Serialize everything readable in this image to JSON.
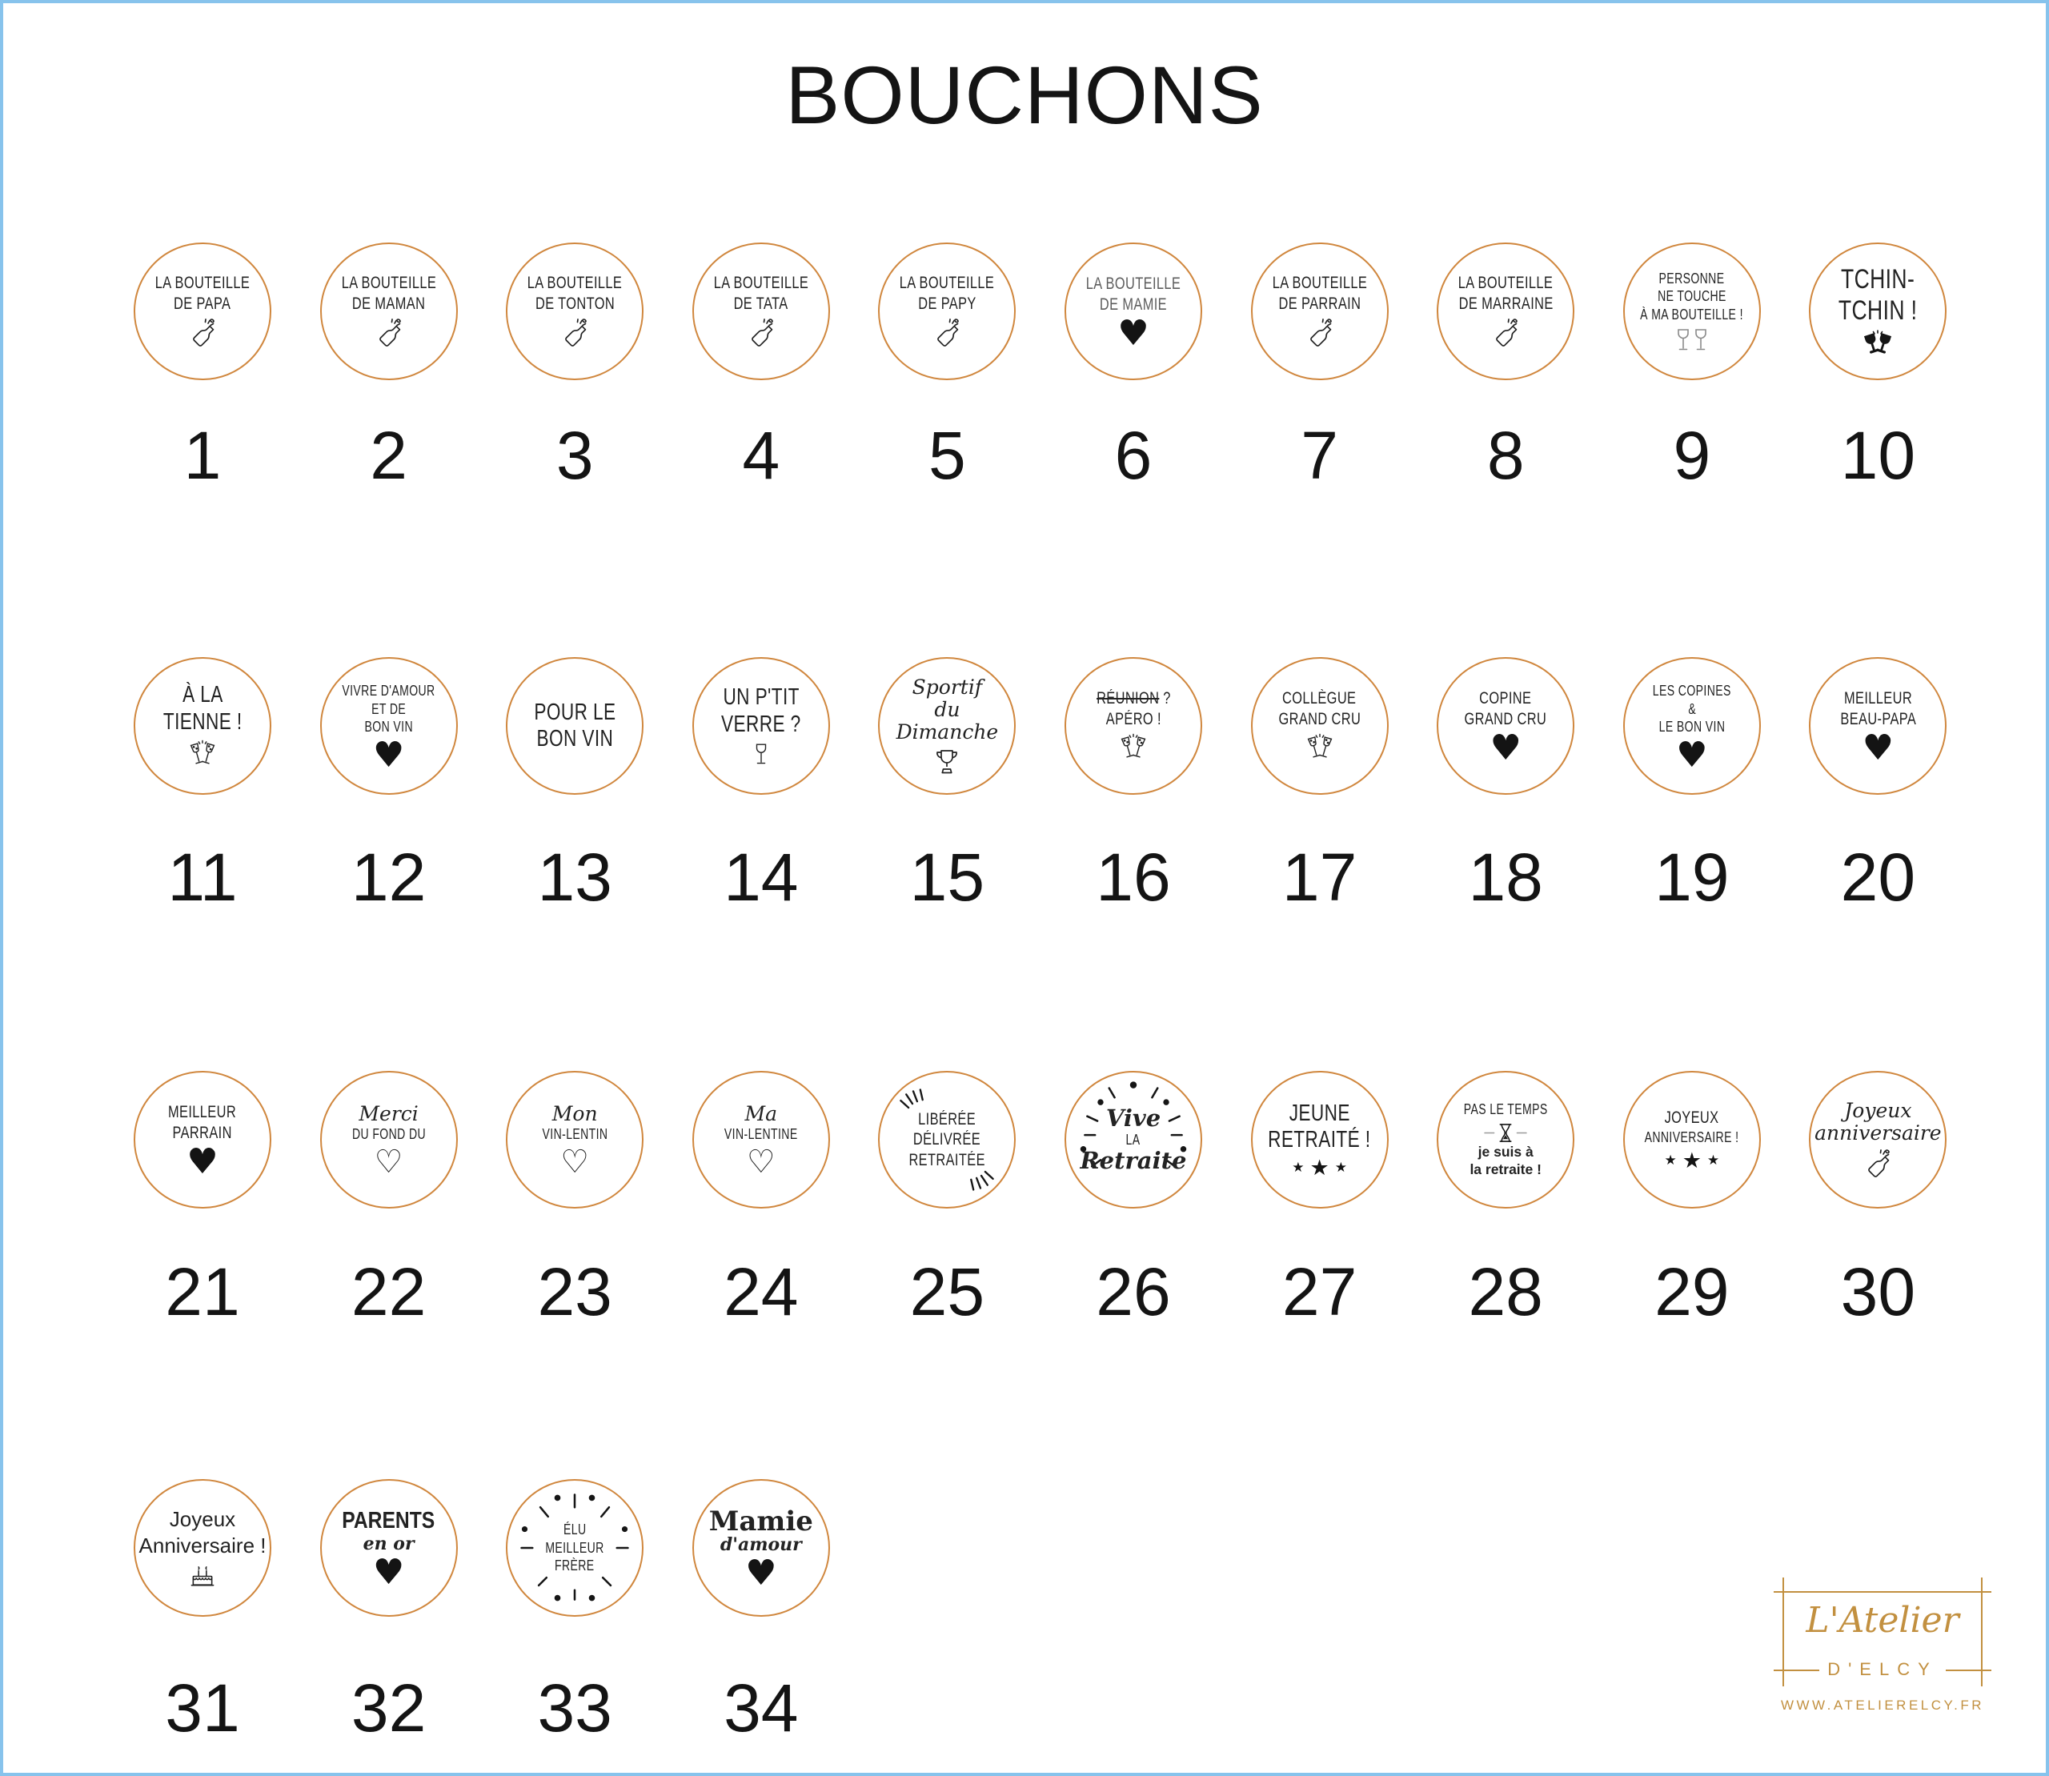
{
  "page": {
    "title": "BOUCHONS",
    "colors": {
      "circle_border": "#d0873e",
      "logo_gold": "#c29040",
      "page_border": "#87c3ec"
    }
  },
  "badges": [
    {
      "n": "1",
      "row": 1,
      "col": 1,
      "c": [
        {
          "t": "LA BOUTEILLE",
          "s": "caps"
        },
        {
          "t": "DE PAPA",
          "s": "caps"
        },
        {
          "i": "champagne-bottle"
        }
      ]
    },
    {
      "n": "2",
      "row": 1,
      "col": 2,
      "c": [
        {
          "t": "LA BOUTEILLE",
          "s": "caps"
        },
        {
          "t": "DE MAMAN",
          "s": "caps"
        },
        {
          "i": "champagne-bottle"
        }
      ]
    },
    {
      "n": "3",
      "row": 1,
      "col": 3,
      "c": [
        {
          "t": "LA BOUTEILLE",
          "s": "caps"
        },
        {
          "t": "DE TONTON",
          "s": "caps"
        },
        {
          "i": "champagne-bottle"
        }
      ]
    },
    {
      "n": "4",
      "row": 1,
      "col": 4,
      "c": [
        {
          "t": "LA BOUTEILLE",
          "s": "caps"
        },
        {
          "t": "DE TATA",
          "s": "caps"
        },
        {
          "i": "champagne-bottle"
        }
      ]
    },
    {
      "n": "5",
      "row": 1,
      "col": 5,
      "c": [
        {
          "t": "LA BOUTEILLE",
          "s": "caps"
        },
        {
          "t": "DE PAPY",
          "s": "caps"
        },
        {
          "i": "champagne-bottle"
        }
      ]
    },
    {
      "n": "6",
      "row": 1,
      "col": 6,
      "muted": true,
      "c": [
        {
          "t": "LA BOUTEILLE",
          "s": "caps"
        },
        {
          "t": "DE MAMIE",
          "s": "caps"
        },
        {
          "i": "heart-filled"
        }
      ]
    },
    {
      "n": "7",
      "row": 1,
      "col": 7,
      "c": [
        {
          "t": "LA BOUTEILLE",
          "s": "caps"
        },
        {
          "t": "DE PARRAIN",
          "s": "caps"
        },
        {
          "i": "champagne-bottle"
        }
      ]
    },
    {
      "n": "8",
      "row": 1,
      "col": 8,
      "c": [
        {
          "t": "LA BOUTEILLE",
          "s": "caps"
        },
        {
          "t": "DE MARRAINE",
          "s": "caps"
        },
        {
          "i": "champagne-bottle"
        }
      ]
    },
    {
      "n": "9",
      "row": 1,
      "col": 9,
      "c": [
        {
          "t": "PERSONNE",
          "s": "caps-sm"
        },
        {
          "t": "NE TOUCHE",
          "s": "caps-sm"
        },
        {
          "t": "À MA BOUTEILLE !",
          "s": "caps-sm"
        },
        {
          "i": "wine-glasses-pair"
        }
      ]
    },
    {
      "n": "10",
      "row": 1,
      "col": 10,
      "c": [
        {
          "t": "TCHIN-",
          "s": "caps-xl"
        },
        {
          "t": "TCHIN !",
          "s": "caps-xl"
        },
        {
          "i": "clink-glasses-filled"
        }
      ]
    },
    {
      "n": "11",
      "row": 2,
      "col": 1,
      "c": [
        {
          "t": "À LA",
          "s": "caps-lg"
        },
        {
          "t": "TIENNE !",
          "s": "caps-lg"
        },
        {
          "i": "clink-flutes"
        }
      ]
    },
    {
      "n": "12",
      "row": 2,
      "col": 2,
      "c": [
        {
          "t": "VIVRE D'AMOUR",
          "s": "caps-sm"
        },
        {
          "t": "ET DE",
          "s": "caps-sm"
        },
        {
          "t": "BON VIN",
          "s": "caps-sm"
        },
        {
          "i": "heart-filled"
        }
      ]
    },
    {
      "n": "13",
      "row": 2,
      "col": 3,
      "c": [
        {
          "t": "POUR LE",
          "s": "caps-lg"
        },
        {
          "t": "BON VIN",
          "s": "caps-lg"
        }
      ]
    },
    {
      "n": "14",
      "row": 2,
      "col": 4,
      "c": [
        {
          "t": "UN P'TIT",
          "s": "caps-lg"
        },
        {
          "t": "VERRE ?",
          "s": "caps-lg"
        },
        {
          "i": "wine-glass"
        }
      ]
    },
    {
      "n": "15",
      "row": 2,
      "col": 5,
      "c": [
        {
          "t": "Sportif",
          "s": "script"
        },
        {
          "t": "du",
          "s": "script"
        },
        {
          "t": "Dimanche",
          "s": "script"
        },
        {
          "i": "trophy"
        }
      ]
    },
    {
      "n": "16",
      "row": 2,
      "col": 6,
      "c": [
        {
          "t": "RÉUNION ?",
          "s": "caps",
          "strike": "RÉUNION"
        },
        {
          "t": "APÉRO !",
          "s": "caps"
        },
        {
          "i": "clink-flutes"
        }
      ]
    },
    {
      "n": "17",
      "row": 2,
      "col": 7,
      "c": [
        {
          "t": "COLLÈGUE",
          "s": "caps"
        },
        {
          "t": "GRAND CRU",
          "s": "caps"
        },
        {
          "i": "clink-flutes"
        }
      ]
    },
    {
      "n": "18",
      "row": 2,
      "col": 8,
      "c": [
        {
          "t": "COPINE",
          "s": "caps"
        },
        {
          "t": "GRAND CRU",
          "s": "caps"
        },
        {
          "i": "heart-filled"
        }
      ]
    },
    {
      "n": "19",
      "row": 2,
      "col": 9,
      "c": [
        {
          "t": "LES COPINES",
          "s": "caps-sm"
        },
        {
          "t": "&",
          "s": "caps-sm"
        },
        {
          "t": "LE BON VIN",
          "s": "caps-sm"
        },
        {
          "i": "heart-filled"
        }
      ]
    },
    {
      "n": "20",
      "row": 2,
      "col": 10,
      "c": [
        {
          "t": "MEILLEUR",
          "s": "caps"
        },
        {
          "t": "BEAU-PAPA",
          "s": "caps"
        },
        {
          "i": "heart-filled"
        }
      ]
    },
    {
      "n": "21",
      "row": 3,
      "col": 1,
      "c": [
        {
          "t": "MEILLEUR",
          "s": "caps"
        },
        {
          "t": "PARRAIN",
          "s": "caps"
        },
        {
          "i": "heart-filled"
        }
      ]
    },
    {
      "n": "22",
      "row": 3,
      "col": 2,
      "c": [
        {
          "t": "Merci",
          "s": "script"
        },
        {
          "t": "DU FOND DU",
          "s": "caps-sm"
        },
        {
          "i": "heart-outline"
        }
      ]
    },
    {
      "n": "23",
      "row": 3,
      "col": 3,
      "c": [
        {
          "t": "Mon",
          "s": "script"
        },
        {
          "t": "VIN-LENTIN",
          "s": "caps-sm"
        },
        {
          "i": "heart-outline"
        }
      ]
    },
    {
      "n": "24",
      "row": 3,
      "col": 4,
      "c": [
        {
          "t": "Ma",
          "s": "script"
        },
        {
          "t": "VIN-LENTINE",
          "s": "caps-sm"
        },
        {
          "i": "heart-outline"
        }
      ]
    },
    {
      "n": "25",
      "row": 3,
      "col": 5,
      "deco": "burst-corners",
      "c": [
        {
          "t": "LIBÉRÉE",
          "s": "caps"
        },
        {
          "t": "DÉLIVRÉE",
          "s": "caps"
        },
        {
          "t": "RETRAITÉE",
          "s": "caps"
        }
      ]
    },
    {
      "n": "26",
      "row": 3,
      "col": 6,
      "deco": "sparkle-ring",
      "c": [
        {
          "t": "Vive",
          "s": "brush"
        },
        {
          "t": "LA",
          "s": "caps-sm"
        },
        {
          "t": "Retraite",
          "s": "brush"
        }
      ]
    },
    {
      "n": "27",
      "row": 3,
      "col": 7,
      "c": [
        {
          "t": "JEUNE",
          "s": "caps-lg"
        },
        {
          "t": "RETRAITÉ !",
          "s": "caps-lg"
        },
        {
          "i": "stars-three"
        }
      ]
    },
    {
      "n": "28",
      "row": 3,
      "col": 8,
      "c": [
        {
          "t": "PAS LE TEMPS",
          "s": "caps-sm"
        },
        {
          "i": "hourglass"
        },
        {
          "t": "je suis à",
          "s": "comic"
        },
        {
          "t": "la retraite !",
          "s": "comic"
        }
      ]
    },
    {
      "n": "29",
      "row": 3,
      "col": 9,
      "c": [
        {
          "t": "JOYEUX",
          "s": "caps"
        },
        {
          "t": "ANNIVERSAIRE !",
          "s": "caps-sm"
        },
        {
          "i": "stars-three"
        }
      ]
    },
    {
      "n": "30",
      "row": 3,
      "col": 10,
      "c": [
        {
          "t": "Joyeux",
          "s": "script"
        },
        {
          "t": "anniversaire",
          "s": "script"
        },
        {
          "i": "champagne-bottle"
        }
      ]
    },
    {
      "n": "31",
      "row": 4,
      "col": 1,
      "c": [
        {
          "t": "Joyeux",
          "s": "hand"
        },
        {
          "t": "Anniversaire !",
          "s": "hand"
        },
        {
          "i": "birthday-cake"
        }
      ]
    },
    {
      "n": "32",
      "row": 4,
      "col": 2,
      "c": [
        {
          "t": "PARENTS",
          "s": "bold"
        },
        {
          "t": "en or",
          "s": "script-b"
        },
        {
          "i": "heart-filled"
        }
      ]
    },
    {
      "n": "33",
      "row": 4,
      "col": 3,
      "deco": "ray-ring",
      "c": [
        {
          "t": "ÉLU",
          "s": "caps-sm"
        },
        {
          "t": "MEILLEUR",
          "s": "caps-sm"
        },
        {
          "t": "FRÈRE",
          "s": "caps-sm"
        }
      ]
    },
    {
      "n": "34",
      "row": 4,
      "col": 4,
      "c": [
        {
          "t": "Mamie",
          "s": "slab"
        },
        {
          "t": "d'amour",
          "s": "script-b"
        },
        {
          "i": "heart-filled"
        }
      ]
    }
  ],
  "logo": {
    "name_script": "L'Atelier",
    "name_caps": "D'ELCY",
    "website": "WWW.ATELIERELCY.FR"
  }
}
